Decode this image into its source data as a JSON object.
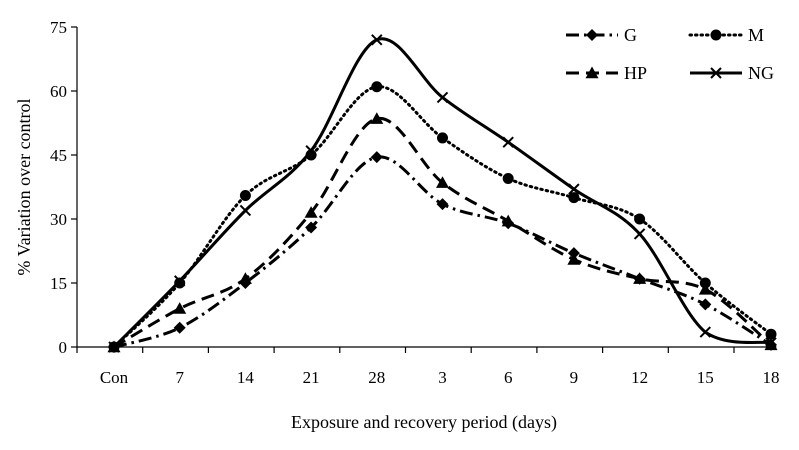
{
  "chart_data": {
    "type": "line",
    "title": "",
    "xlabel": "Exposure and recovery period (days)",
    "ylabel": "% Variation over control",
    "ylim": [
      0,
      75
    ],
    "yticks": [
      0,
      15,
      30,
      45,
      60,
      75
    ],
    "categories": [
      "Con",
      "7",
      "14",
      "21",
      "28",
      "3",
      "6",
      "9",
      "12",
      "15",
      "18"
    ],
    "grid": false,
    "legend_position": "top-right",
    "series": [
      {
        "name": "G",
        "marker": "diamond",
        "dash": "dashdot",
        "values": [
          0,
          4.5,
          15,
          28,
          44.5,
          33.5,
          29,
          22,
          16,
          10,
          0.5
        ]
      },
      {
        "name": "M",
        "marker": "circle",
        "dash": "dotted",
        "values": [
          0,
          15,
          35.5,
          45,
          61,
          49,
          39.5,
          35,
          30,
          15,
          3
        ]
      },
      {
        "name": "HP",
        "marker": "triangle",
        "dash": "dashed",
        "values": [
          0,
          9,
          16,
          31.5,
          53.5,
          38.5,
          29.5,
          20.5,
          16,
          13.5,
          0.5
        ]
      },
      {
        "name": "NG",
        "marker": "x",
        "dash": "solid",
        "values": [
          0,
          15.5,
          32,
          46,
          72,
          58.5,
          48,
          37,
          26.5,
          3.5,
          1
        ]
      }
    ]
  }
}
